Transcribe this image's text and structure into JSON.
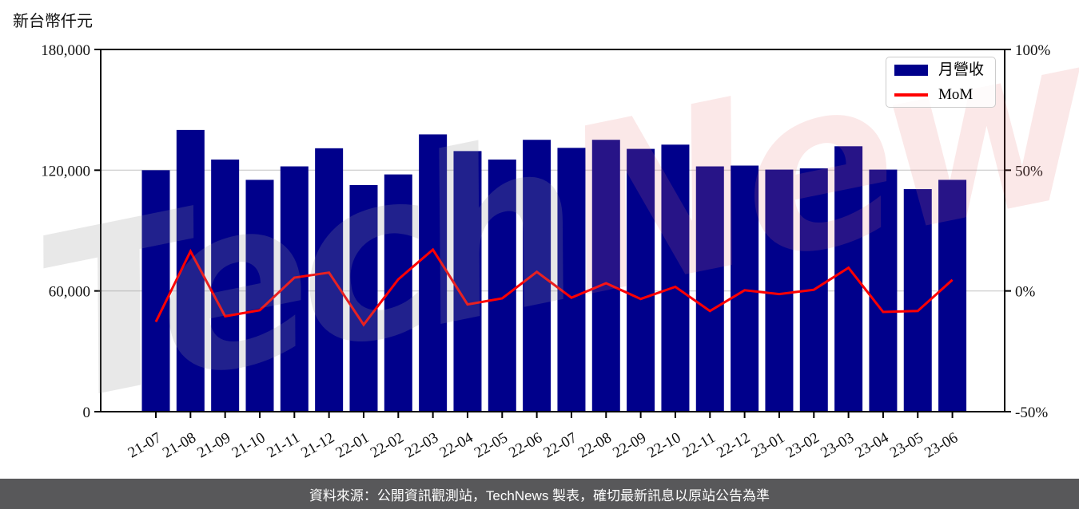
{
  "chart_data": {
    "type": "bar",
    "title": "",
    "unit_label": "新台幣仟元",
    "categories": [
      "21-07",
      "21-08",
      "21-09",
      "21-10",
      "21-11",
      "21-12",
      "22-01",
      "22-02",
      "22-03",
      "22-04",
      "22-05",
      "22-06",
      "22-07",
      "22-08",
      "22-09",
      "22-10",
      "22-11",
      "22-12",
      "23-01",
      "23-02",
      "23-03",
      "23-04",
      "23-05",
      "23-06"
    ],
    "series": [
      {
        "name": "月營收",
        "type": "bar",
        "axis": "left",
        "color": "#00008b",
        "values": [
          120000,
          140000,
          125300,
          115200,
          121900,
          130900,
          112600,
          117900,
          137800,
          129500,
          125300,
          135100,
          131100,
          135100,
          130600,
          132700,
          121900,
          122300,
          120300,
          120900,
          131900,
          120300,
          110600,
          115200
        ]
      },
      {
        "name": "MoM",
        "type": "line",
        "axis": "right",
        "color": "#ff0000",
        "values_pct": [
          -12.8,
          16.4,
          -10.5,
          -8.0,
          5.5,
          7.6,
          -14.0,
          4.8,
          17.1,
          -5.6,
          -3.1,
          7.9,
          -2.8,
          3.2,
          -3.3,
          1.7,
          -8.3,
          0.3,
          -1.3,
          0.5,
          9.6,
          -8.7,
          -8.3,
          4.6
        ]
      }
    ],
    "ylim_left": [
      0,
      180000
    ],
    "ylim_right_pct": [
      -50,
      100
    ],
    "y_left_ticks": [
      {
        "value": 0,
        "label": "0"
      },
      {
        "value": 60000,
        "label": "60,000"
      },
      {
        "value": 120000,
        "label": "120,000"
      },
      {
        "value": 180000,
        "label": "180,000"
      }
    ],
    "y_right_ticks": [
      {
        "value": -50,
        "label": "-50%"
      },
      {
        "value": 0,
        "label": "0%"
      },
      {
        "value": 50,
        "label": "50%"
      },
      {
        "value": 100,
        "label": "100%"
      }
    ],
    "gridline_values_left": [
      60000,
      120000
    ],
    "grid": "horizontal",
    "legend_position": "top-right",
    "watermark": {
      "part1": "Tech",
      "part2": "News"
    }
  },
  "footer": {
    "text": "資料來源：公開資訊觀測站，TechNews 製表，確切最新訊息以原站公告為準"
  },
  "colors": {
    "bar": "#00008b",
    "line": "#ff0000",
    "grid": "#d4d4d4",
    "axis": "#000000",
    "tick_label": "#111111",
    "footer_bg": "#58585a",
    "footer_text": "#ffffff"
  }
}
